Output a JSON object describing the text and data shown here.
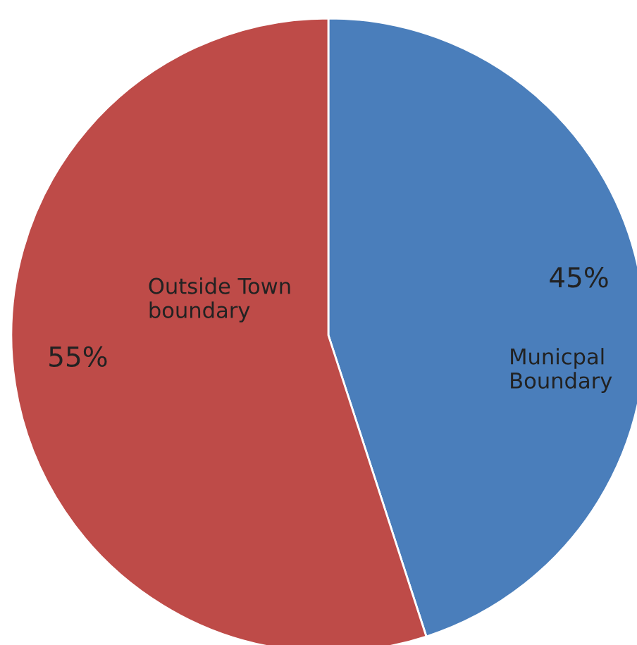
{
  "chart_data": {
    "type": "pie",
    "categories": [
      "Municpal Boundary",
      "Outside Town boundary"
    ],
    "values": [
      45,
      55
    ],
    "colors": [
      "#4a7ebb",
      "#be4b48"
    ],
    "value_labels": [
      "45%",
      "55%"
    ],
    "legend": false
  }
}
